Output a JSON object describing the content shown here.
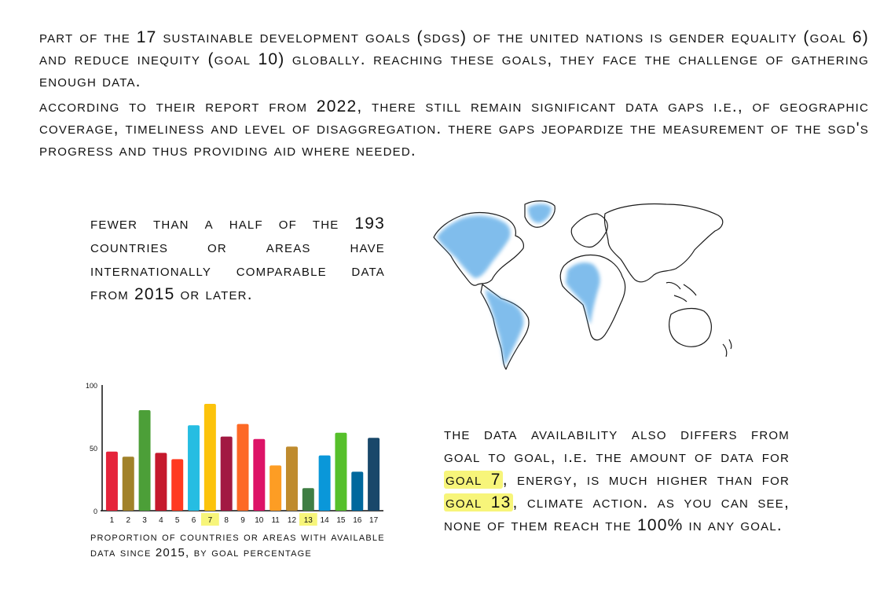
{
  "intro": {
    "paragraph1": "Part of the 17 Sustainable Development Goals (SDGs) of the United Nations is gender equality (goal 6) and reduce inequity (goal 10) globally. Reaching these goals, they face the challenge of gathering enough data.",
    "paragraph2": "According to their report from 2022, there still remain significant data gaps i.e., of geographic coverage, timeliness and level of disaggregation. There gaps jeopardize the measurement of the SGD's progress and thus providing aid where needed."
  },
  "fact": {
    "text": "Fewer than a half of the 193 countries or areas have internationally comparable data from 2015 or later."
  },
  "note": {
    "part1": "The data availability also differs from goal to goal, i.e. the amount of data for ",
    "highlight1": "goal 7",
    "part2": ", energy, is much higher than for ",
    "highlight2": "goal 13",
    "part3": ", climate action. As you can see, none of them reach the 100% in any goal."
  },
  "colors": {
    "highlight": "#f7f57a",
    "map_fill": "#56a8e6"
  },
  "chart_data": {
    "type": "bar",
    "categories": [
      "1",
      "2",
      "3",
      "4",
      "5",
      "6",
      "7",
      "8",
      "9",
      "10",
      "11",
      "12",
      "13",
      "14",
      "15",
      "16",
      "17"
    ],
    "values": [
      47,
      43,
      80,
      46,
      41,
      68,
      85,
      59,
      69,
      57,
      36,
      51,
      18,
      44,
      62,
      31,
      58
    ],
    "colors": [
      "#e5243b",
      "#a1822a",
      "#4c9f38",
      "#c5192d",
      "#ff3a21",
      "#26bde2",
      "#fcc30b",
      "#a21942",
      "#fd6925",
      "#dd1367",
      "#fd9d24",
      "#bf8b2e",
      "#3f7e44",
      "#0a97d9",
      "#56c02b",
      "#00689d",
      "#19486a"
    ],
    "highlighted_categories": [
      "7",
      "13"
    ],
    "yticks": [
      0,
      50,
      100
    ],
    "ylim": [
      0,
      100
    ],
    "caption": "Proportion of countries or areas with available data since 2015, by goal percentage"
  }
}
